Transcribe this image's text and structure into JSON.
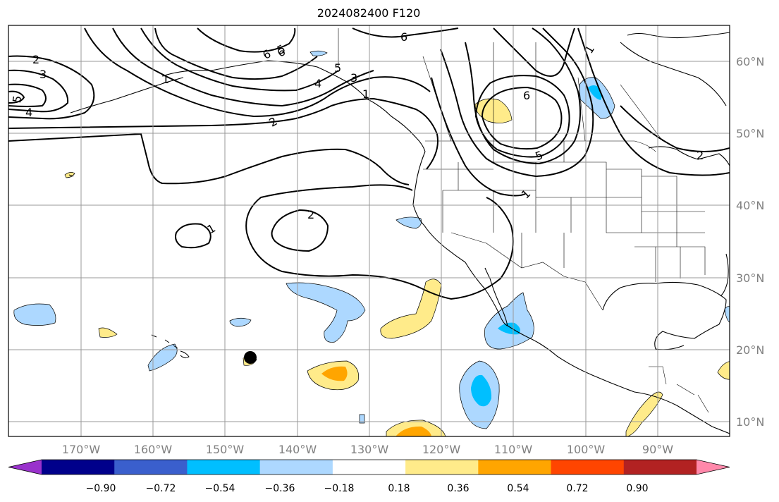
{
  "title": "2024082400 F120",
  "lat_labels": [
    "60°N",
    "50°N",
    "40°N",
    "30°N",
    "20°N",
    "10°N"
  ],
  "lon_labels": [
    "170°W",
    "160°W",
    "150°W",
    "140°W",
    "130°W",
    "120°W",
    "110°W",
    "100°W",
    "90°W"
  ],
  "colorbar": {
    "ticks": [
      "−0.90",
      "−0.72",
      "−0.54",
      "−0.36",
      "−0.18",
      "0.18",
      "0.36",
      "0.54",
      "0.72",
      "0.90"
    ],
    "colors": [
      "#9932cc",
      "#00008b",
      "#3a5fcd",
      "#00bfff",
      "#add8ff",
      "#ffffff",
      "#ffeb8a",
      "#ffa500",
      "#ff4500",
      "#b22222",
      "#ff88aa"
    ]
  },
  "contour_labels": [
    "2",
    "3",
    "4",
    "5",
    "6",
    "6",
    "5",
    "6",
    "4",
    "5",
    "3",
    "2",
    "1",
    "1",
    "6",
    "1",
    "2",
    "2",
    "5",
    "1",
    "1"
  ],
  "colors": {
    "fill_light_blue": "#add8ff",
    "fill_blue": "#00bfff",
    "fill_light_yellow": "#ffeb8a",
    "fill_orange": "#ffa500",
    "grid": "#999999",
    "contour": "#000000"
  }
}
